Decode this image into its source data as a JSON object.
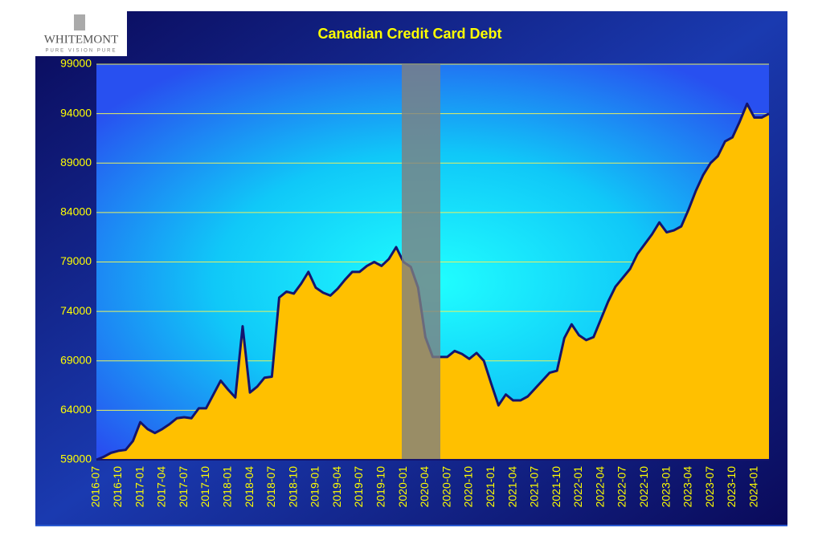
{
  "logo": {
    "name": "WHITEMONT",
    "tagline": "PURE VISION PURE"
  },
  "chart_data": {
    "type": "area",
    "title": "Canadian Credit Card Debt",
    "categories": [
      "2016-07",
      null,
      null,
      "2016-10",
      null,
      null,
      "2017-01",
      null,
      null,
      "2017-04",
      null,
      null,
      "2017-07",
      null,
      null,
      "2017-10",
      null,
      null,
      "2018-01",
      null,
      null,
      "2018-04",
      null,
      null,
      "2018-07",
      null,
      null,
      "2018-10",
      null,
      null,
      "2019-01",
      null,
      null,
      "2019-04",
      null,
      null,
      "2019-07",
      null,
      null,
      "2019-10",
      null,
      null,
      "2020-01",
      null,
      null,
      "2020-04",
      null,
      null,
      "2020-07",
      null,
      null,
      "2020-10",
      null,
      null,
      "2021-01",
      null,
      null,
      "2021-04",
      null,
      null,
      "2021-07",
      null,
      null,
      "2021-10",
      null,
      null,
      "2022-01",
      null,
      null,
      "2022-04",
      null,
      null,
      "2022-07",
      null,
      null,
      "2022-10",
      null,
      null,
      "2023-01",
      null,
      null,
      "2023-04",
      null,
      null,
      "2023-07",
      null,
      null,
      "2023-10",
      null,
      null,
      "2024-01",
      null,
      null
    ],
    "values": [
      59000,
      59300,
      59700,
      59900,
      60000,
      60900,
      62800,
      62100,
      61700,
      62100,
      62600,
      63200,
      63300,
      63200,
      64200,
      64200,
      65600,
      67000,
      66100,
      65300,
      72500,
      65800,
      66400,
      67300,
      67400,
      75400,
      76000,
      75800,
      76800,
      78000,
      76400,
      75900,
      75600,
      76300,
      77200,
      78000,
      78000,
      78600,
      79000,
      78600,
      79300,
      80500,
      79000,
      78500,
      76400,
      71400,
      69400,
      69400,
      69400,
      70000,
      69700,
      69200,
      69800,
      69000,
      66700,
      64500,
      65600,
      65000,
      65000,
      65400,
      66200,
      67000,
      67800,
      68000,
      71300,
      72700,
      71600,
      71100,
      71400,
      73200,
      75000,
      76500,
      77400,
      78300,
      79800,
      80800,
      81800,
      83000,
      82000,
      82200,
      82600,
      84300,
      86200,
      87800,
      89000,
      89700,
      91200,
      91600,
      93200,
      95000,
      93600,
      93600,
      94000
    ],
    "color": "#ffc000",
    "line_color": "#14146e",
    "ylim": [
      59000,
      99000
    ],
    "yticks": [
      59000,
      64000,
      69000,
      74000,
      79000,
      84000,
      89000,
      94000,
      99000
    ],
    "grid": true
  }
}
